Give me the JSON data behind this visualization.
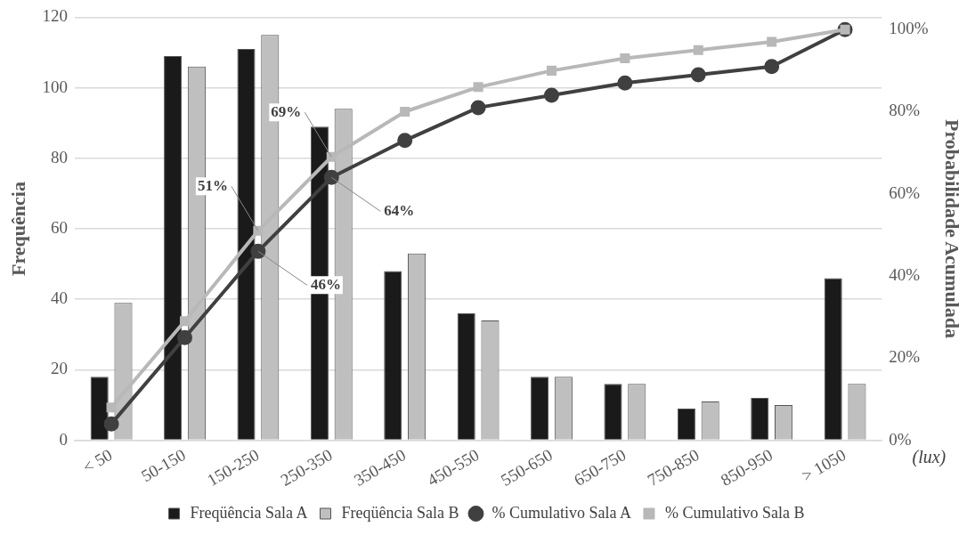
{
  "chart_data": {
    "type": "bar",
    "xlabel": "(lux)",
    "ylabel": "Frequência",
    "y2label": "Probabilidade Acumulada",
    "categories": [
      "< 50",
      "50-150",
      "150-250",
      "250-350",
      "350-450",
      "450-550",
      "550-650",
      "650-750",
      "750-850",
      "850-950",
      "> 1050"
    ],
    "series": [
      {
        "name": "Freqüência Sala A",
        "color": "#1a1a1a",
        "values": [
          18,
          109,
          111,
          89,
          48,
          36,
          18,
          16,
          9,
          12,
          46
        ]
      },
      {
        "name": "Freqüência Sala B",
        "color": "#bfbfbf",
        "values": [
          39,
          106,
          115,
          94,
          53,
          34,
          18,
          16,
          11,
          10,
          16
        ]
      },
      {
        "name": "% Cumulativo Sala A",
        "type": "line",
        "axis": "y2",
        "marker": "circle",
        "color": "#404040",
        "values": [
          4,
          25,
          46,
          64,
          73,
          81,
          84,
          87,
          89,
          91,
          100
        ],
        "value_labels": [
          null,
          null,
          "46%",
          "64%",
          null,
          null,
          null,
          null,
          null,
          null,
          null
        ]
      },
      {
        "name": "% Cumulativo Sala B",
        "type": "line",
        "axis": "y2",
        "marker": "square",
        "color": "#b8b8b8",
        "values": [
          8,
          29,
          51,
          69,
          80,
          86,
          90,
          93,
          95,
          97,
          100
        ],
        "value_labels": [
          null,
          null,
          "51%",
          "69%",
          null,
          null,
          null,
          null,
          null,
          null,
          null
        ]
      }
    ],
    "ylim": [
      0,
      120
    ],
    "yticks": [
      0,
      20,
      40,
      60,
      80,
      100,
      120
    ],
    "y2lim": [
      0,
      103
    ],
    "y2ticks": [
      {
        "value": 0,
        "label": "0%"
      },
      {
        "value": 20,
        "label": "20%"
      },
      {
        "value": 40,
        "label": "40%"
      },
      {
        "value": 60,
        "label": "60%"
      },
      {
        "value": 80,
        "label": "80%"
      },
      {
        "value": 100,
        "label": "100%"
      }
    ],
    "grid": "y",
    "legend": "bottom"
  }
}
